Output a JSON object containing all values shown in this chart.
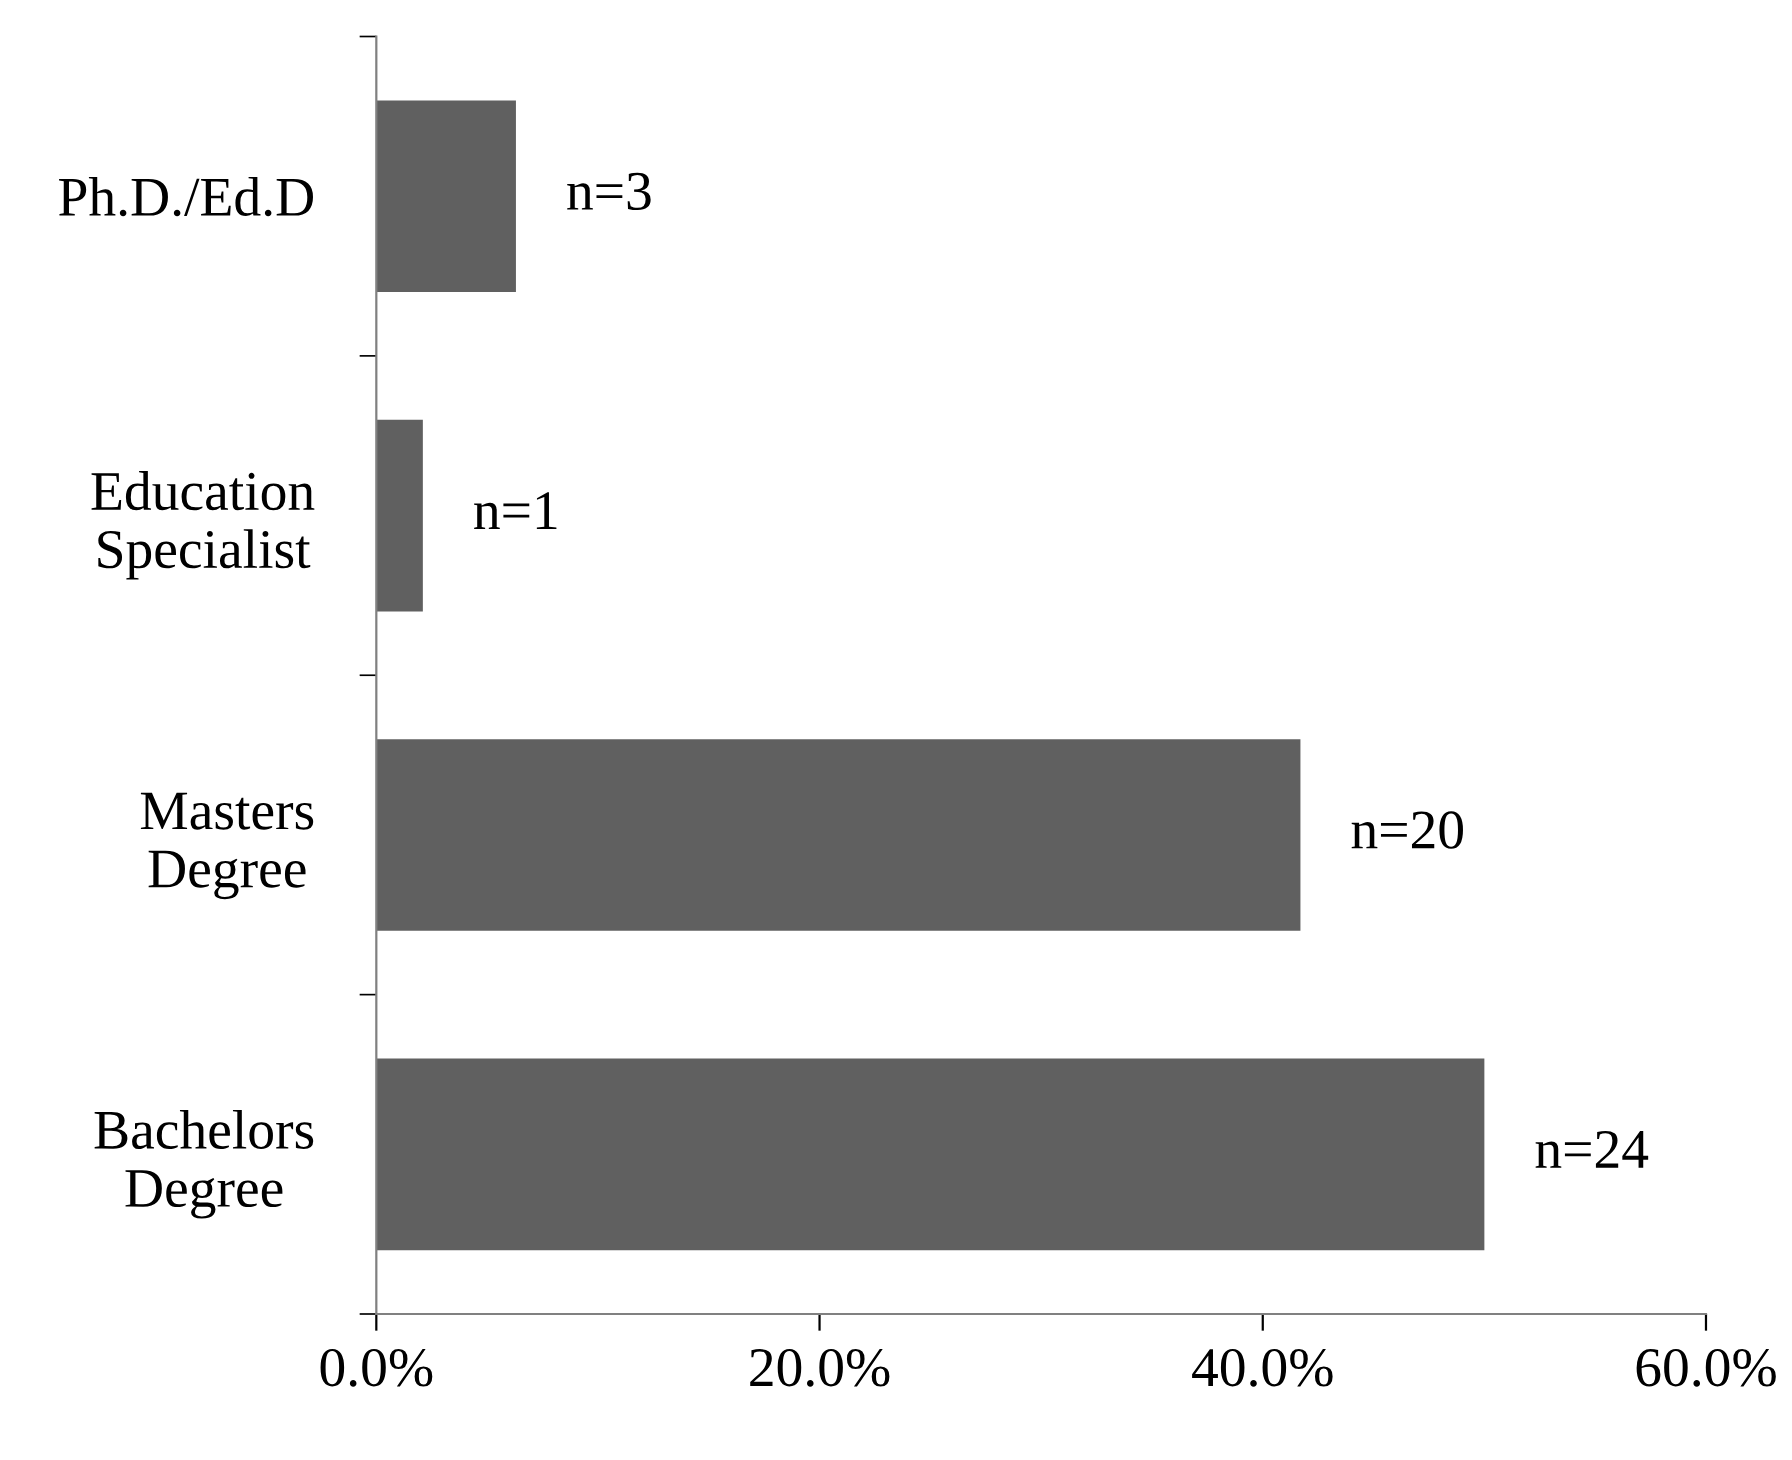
{
  "chart_data": {
    "type": "bar",
    "orientation": "horizontal",
    "categories": [
      "Ph.D./Ed.D",
      "Education Specialist",
      "Masters Degree",
      "Bachelors Degree"
    ],
    "values": [
      6.3,
      2.1,
      41.7,
      50.0
    ],
    "annotations": [
      {
        "text": "n=3",
        "x": 6.3,
        "y": "Ph.D./Ed.D"
      },
      {
        "text": "n=1",
        "x": 2.1,
        "y": "Education Specialist"
      },
      {
        "text": "n=20",
        "x": 41.7,
        "y": "Masters Degree"
      },
      {
        "text": "n=24",
        "x": 50.0,
        "y": "Bachelors Degree"
      }
    ],
    "color": "#606060",
    "xlim": [
      0,
      60
    ],
    "xticks": [
      {
        "value": 0,
        "label": "0.0%"
      },
      {
        "value": 20,
        "label": "20.0%"
      },
      {
        "value": 40,
        "label": "40.0%"
      },
      {
        "value": 60,
        "label": "60.0%"
      }
    ],
    "grid": false,
    "legend": false
  }
}
